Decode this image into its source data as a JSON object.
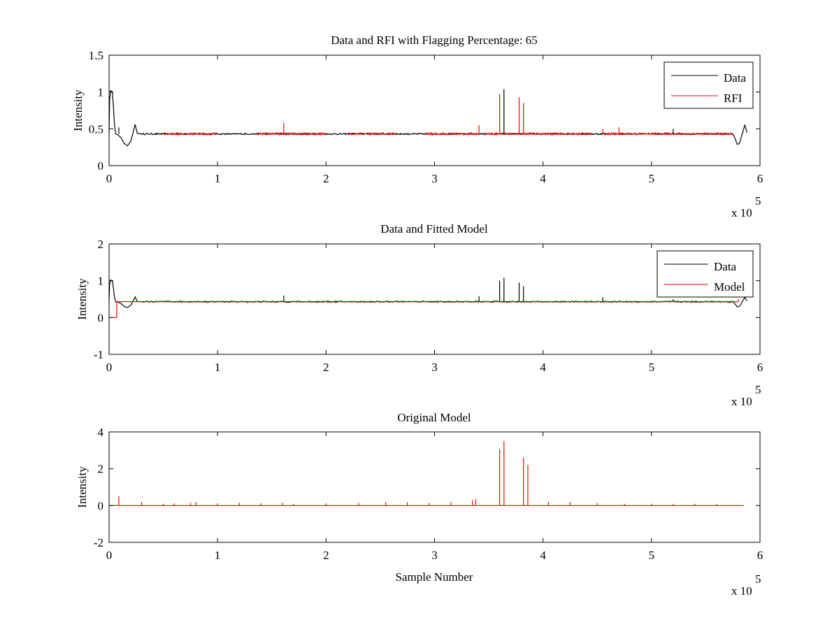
{
  "chart_data": [
    {
      "type": "line",
      "title": "Data and RFI with Flagging Percentage: 65",
      "xlabel": "",
      "ylabel": "Intensity",
      "xlim": [
        0,
        600000
      ],
      "ylim": [
        0,
        1.5
      ],
      "x_ticks": [
        "0",
        "1",
        "2",
        "3",
        "4",
        "5",
        "6"
      ],
      "y_ticks": [
        "0",
        "0.5",
        "1",
        "1.5"
      ],
      "x_exponent_label": "x 10",
      "x_exponent": "5",
      "legend_position": "top-right",
      "baseline": 0.43,
      "series": [
        {
          "name": "Data",
          "color": "#000000",
          "points": [
            [
              0,
              0.43
            ],
            [
              500,
              0.9
            ],
            [
              1500,
              1.02
            ],
            [
              3000,
              1.0
            ],
            [
              4000,
              0.8
            ],
            [
              5000,
              0.55
            ],
            [
              6000,
              0.43
            ],
            [
              8000,
              0.42
            ],
            [
              11000,
              0.38
            ],
            [
              14000,
              0.3
            ],
            [
              17000,
              0.27
            ],
            [
              20000,
              0.33
            ],
            [
              23000,
              0.5
            ],
            [
              24000,
              0.56
            ],
            [
              26000,
              0.44
            ],
            [
              30000,
              0.43
            ],
            [
              575000,
              0.43
            ],
            [
              577000,
              0.37
            ],
            [
              579000,
              0.29
            ],
            [
              581000,
              0.3
            ],
            [
              583000,
              0.4
            ],
            [
              585000,
              0.5
            ],
            [
              586000,
              0.55
            ],
            [
              588000,
              0.45
            ]
          ]
        },
        {
          "name": "RFI",
          "color": "#ff0000",
          "segments": [
            [
              50000,
              100000
            ],
            [
              137000,
              200000
            ],
            [
              220000,
              265000
            ],
            [
              292000,
              340000
            ],
            [
              345000,
              445000
            ],
            [
              455000,
              575000
            ]
          ],
          "spikes": [
            [
              161000,
              0.58
            ],
            [
              341000,
              0.55
            ],
            [
              360000,
              0.97
            ],
            [
              378000,
              0.93
            ],
            [
              382000,
              0.85
            ],
            [
              455000,
              0.5
            ],
            [
              470000,
              0.52
            ]
          ]
        }
      ],
      "extra_data_spikes": [
        [
          9000,
          0.52
        ],
        [
          364000,
          1.04
        ],
        [
          520000,
          0.5
        ]
      ]
    },
    {
      "type": "line",
      "title": "Data and Fitted Model",
      "xlabel": "",
      "ylabel": "Intensity",
      "xlim": [
        0,
        600000
      ],
      "ylim": [
        -1,
        2
      ],
      "x_ticks": [
        "0",
        "1",
        "2",
        "3",
        "4",
        "5",
        "6"
      ],
      "y_ticks": [
        "-1",
        "0",
        "1",
        "2"
      ],
      "x_exponent_label": "x 10",
      "x_exponent": "5",
      "legend_position": "top-right",
      "baseline": 0.43,
      "series": [
        {
          "name": "Data",
          "color": "#000000",
          "points": [
            [
              0,
              0.43
            ],
            [
              500,
              0.9
            ],
            [
              1500,
              1.02
            ],
            [
              3000,
              1.0
            ],
            [
              4000,
              0.8
            ],
            [
              5000,
              0.55
            ],
            [
              6000,
              0.43
            ],
            [
              8000,
              0.42
            ],
            [
              11000,
              0.38
            ],
            [
              14000,
              0.3
            ],
            [
              17000,
              0.27
            ],
            [
              20000,
              0.33
            ],
            [
              23000,
              0.5
            ],
            [
              24000,
              0.56
            ],
            [
              26000,
              0.44
            ],
            [
              30000,
              0.43
            ],
            [
              575000,
              0.43
            ],
            [
              577000,
              0.37
            ],
            [
              579000,
              0.29
            ],
            [
              581000,
              0.3
            ],
            [
              583000,
              0.4
            ],
            [
              585000,
              0.5
            ],
            [
              586000,
              0.55
            ],
            [
              588000,
              0.45
            ]
          ],
          "spikes": [
            [
              161000,
              0.6
            ],
            [
              341000,
              0.58
            ],
            [
              360000,
              1.0
            ],
            [
              364000,
              1.08
            ],
            [
              378000,
              0.95
            ],
            [
              382000,
              0.85
            ],
            [
              455000,
              0.55
            ],
            [
              520000,
              0.5
            ]
          ]
        },
        {
          "name": "Model",
          "color": "#ff0000",
          "points": [
            [
              0,
              0.0
            ],
            [
              7000,
              0.0
            ],
            [
              7000,
              0.43
            ],
            [
              580000,
              0.43
            ],
            [
              580000,
              0.5
            ]
          ]
        }
      ]
    },
    {
      "type": "line",
      "title": "Original Model",
      "xlabel": "Sample Number",
      "ylabel": "Intensity",
      "xlim": [
        0,
        600000
      ],
      "ylim": [
        -2,
        4
      ],
      "x_ticks": [
        "0",
        "1",
        "2",
        "3",
        "4",
        "5",
        "6"
      ],
      "y_ticks": [
        "-2",
        "0",
        "2",
        "4"
      ],
      "x_exponent_label": "x 10",
      "x_exponent": "5",
      "baseline": 0.0,
      "baseline_range": [
        0,
        585000
      ],
      "series": [
        {
          "name": "",
          "color": "#ff0000",
          "spikes": [
            [
              9000,
              0.5
            ],
            [
              30000,
              0.2
            ],
            [
              50000,
              0.1
            ],
            [
              60000,
              0.12
            ],
            [
              75000,
              0.15
            ],
            [
              80000,
              0.2
            ],
            [
              100000,
              0.12
            ],
            [
              120000,
              0.15
            ],
            [
              140000,
              0.12
            ],
            [
              160000,
              0.15
            ],
            [
              170000,
              0.1
            ],
            [
              200000,
              0.12
            ],
            [
              230000,
              0.15
            ],
            [
              255000,
              0.2
            ],
            [
              275000,
              0.18
            ],
            [
              295000,
              0.15
            ],
            [
              315000,
              0.2
            ],
            [
              335000,
              0.3
            ],
            [
              338000,
              0.35
            ],
            [
              360000,
              3.05
            ],
            [
              364000,
              3.5
            ],
            [
              382000,
              2.6
            ],
            [
              386000,
              2.2
            ],
            [
              405000,
              0.2
            ],
            [
              425000,
              0.2
            ],
            [
              450000,
              0.15
            ],
            [
              475000,
              0.1
            ],
            [
              500000,
              0.1
            ],
            [
              520000,
              0.08
            ],
            [
              540000,
              0.1
            ],
            [
              560000,
              0.08
            ]
          ]
        }
      ]
    }
  ]
}
